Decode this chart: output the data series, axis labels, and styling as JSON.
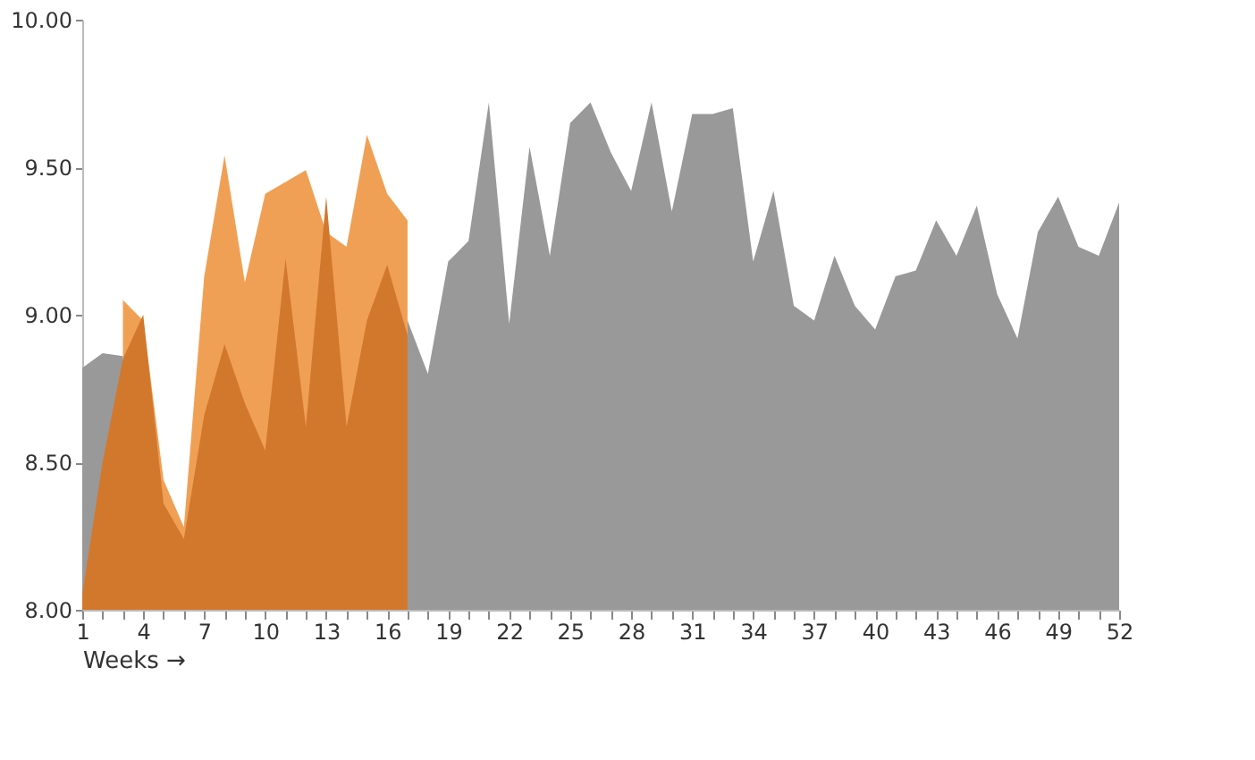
{
  "chart_data": {
    "type": "area",
    "xlabel": "Weeks →",
    "x": [
      1,
      2,
      3,
      4,
      5,
      6,
      7,
      8,
      9,
      10,
      11,
      12,
      13,
      14,
      15,
      16,
      17,
      18,
      19,
      20,
      21,
      22,
      23,
      24,
      25,
      26,
      27,
      28,
      29,
      30,
      31,
      32,
      33,
      34,
      35,
      36,
      37,
      38,
      39,
      40,
      41,
      42,
      43,
      44,
      45,
      46,
      47,
      48,
      49,
      50,
      51,
      52
    ],
    "series": [
      {
        "color": "#f0a055",
        "x": [
          3,
          4,
          5,
          6,
          7,
          8,
          9,
          10,
          11,
          12,
          13,
          14,
          15,
          16,
          17
        ],
        "values": [
          9.05,
          8.98,
          8.44,
          8.28,
          9.13,
          9.54,
          9.11,
          9.41,
          9.45,
          9.49,
          9.28,
          9.23,
          9.61,
          9.41,
          9.32
        ]
      },
      {
        "color": "#999999",
        "values": [
          8.82,
          8.87,
          8.86,
          null,
          null,
          null,
          null,
          null,
          null,
          null,
          null,
          null,
          null,
          null,
          null,
          null,
          8.98,
          8.8,
          9.18,
          9.25,
          9.72,
          8.97,
          9.57,
          9.2,
          9.65,
          9.72,
          9.55,
          9.42,
          9.72,
          9.35,
          9.68,
          9.68,
          9.7,
          9.18,
          9.42,
          9.03,
          8.98,
          9.2,
          9.03,
          8.95,
          9.13,
          9.15,
          9.32,
          9.2,
          9.37,
          9.07,
          8.92,
          9.28,
          9.4,
          9.23,
          9.2,
          9.38
        ]
      },
      {
        "color": "#d2782d",
        "x": [
          1,
          2,
          3,
          4,
          5,
          6,
          7,
          8,
          9,
          10,
          11,
          12,
          13,
          14,
          15,
          16,
          17
        ],
        "values": [
          8.05,
          8.5,
          8.85,
          9.0,
          8.36,
          8.24,
          8.66,
          8.9,
          8.7,
          8.54,
          9.19,
          8.62,
          9.4,
          8.62,
          8.98,
          9.17,
          8.93
        ]
      }
    ],
    "xlim": [
      1,
      52
    ],
    "xticks": [
      1,
      {
        "value": 2,
        "label": null
      },
      {
        "value": 3,
        "label": null
      },
      4,
      {
        "value": 5,
        "label": null
      },
      {
        "value": 6,
        "label": null
      },
      7,
      {
        "value": 8,
        "label": null
      },
      {
        "value": 9,
        "label": null
      },
      10,
      {
        "value": 11,
        "label": null
      },
      {
        "value": 12,
        "label": null
      },
      13,
      {
        "value": 14,
        "label": null
      },
      {
        "value": 15,
        "label": null
      },
      16,
      {
        "value": 17,
        "label": null
      },
      {
        "value": 18,
        "label": null
      },
      19,
      {
        "value": 20,
        "label": null
      },
      {
        "value": 21,
        "label": null
      },
      22,
      {
        "value": 23,
        "label": null
      },
      {
        "value": 24,
        "label": null
      },
      25,
      {
        "value": 26,
        "label": null
      },
      {
        "value": 27,
        "label": null
      },
      28,
      {
        "value": 29,
        "label": null
      },
      {
        "value": 30,
        "label": null
      },
      31,
      {
        "value": 32,
        "label": null
      },
      {
        "value": 33,
        "label": null
      },
      34,
      {
        "value": 35,
        "label": null
      },
      {
        "value": 36,
        "label": null
      },
      37,
      {
        "value": 38,
        "label": null
      },
      {
        "value": 39,
        "label": null
      },
      40,
      {
        "value": 41,
        "label": null
      },
      {
        "value": 42,
        "label": null
      },
      43,
      {
        "value": 44,
        "label": null
      },
      {
        "value": 45,
        "label": null
      },
      46,
      {
        "value": 47,
        "label": null
      },
      {
        "value": 48,
        "label": null
      },
      49,
      {
        "value": 50,
        "label": null
      },
      {
        "value": 51,
        "label": null
      },
      52
    ],
    "ylim": [
      8,
      10
    ],
    "yticks": [
      {
        "value": 8,
        "label": "8.00"
      },
      {
        "value": 8.5,
        "label": "8.50"
      },
      {
        "value": 9,
        "label": "9.00"
      },
      {
        "value": 9.5,
        "label": "9.50"
      },
      {
        "value": 10,
        "label": "10.00"
      }
    ],
    "grid": false
  }
}
